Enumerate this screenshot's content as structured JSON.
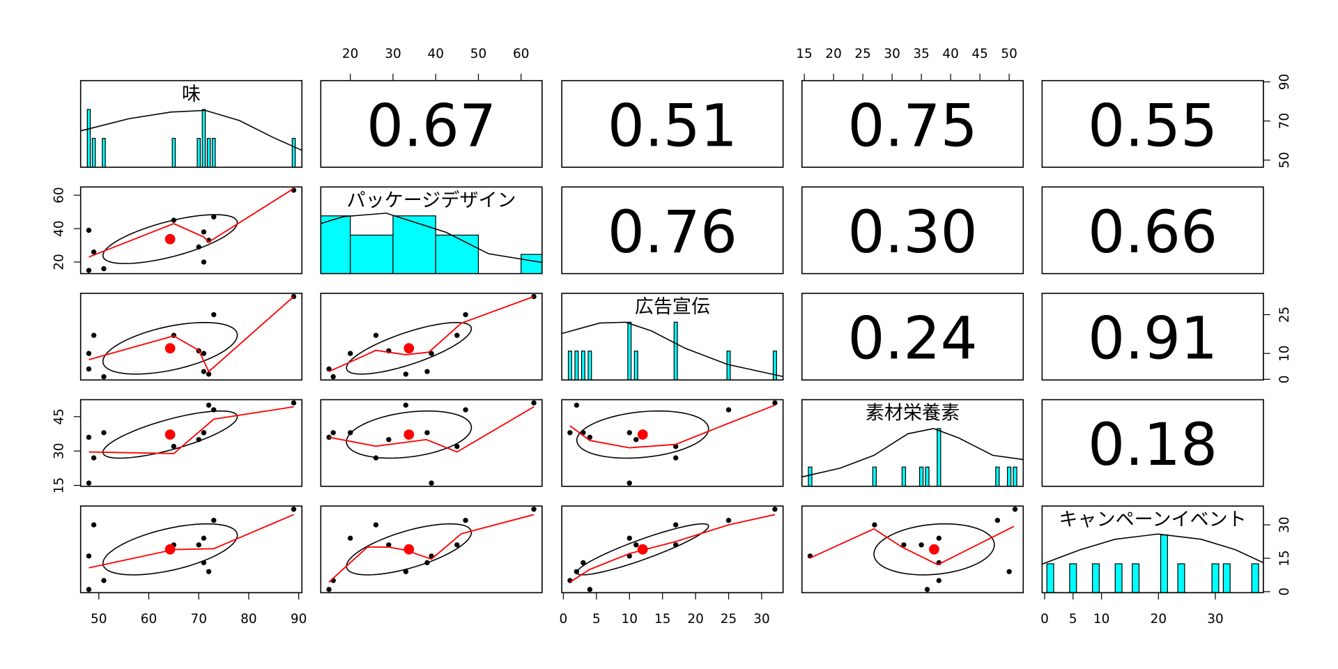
{
  "chart_data": {
    "type": "pairs",
    "variables": [
      {
        "name": "味",
        "values": [
          48,
          48,
          49,
          51,
          65,
          70,
          71,
          71,
          72,
          73,
          89
        ],
        "lim": [
          46.36,
          90.64
        ],
        "xticks": [
          50,
          60,
          70,
          80,
          90
        ],
        "yticks": [
          50,
          70,
          90
        ],
        "mean": 64.27,
        "sd": 13.45,
        "hist": {
          "bins": [
            47.7,
            48.3,
            48.7,
            49.3,
            50.7,
            51.3,
            64.7,
            65.3,
            69.7,
            70.3,
            70.7,
            71.3,
            71.7,
            72.3,
            72.7,
            73.3,
            88.7,
            89.3
          ],
          "counts": [
            2,
            0,
            1,
            0,
            1,
            0,
            1,
            0,
            1,
            0,
            2,
            0,
            1,
            0,
            1,
            0,
            1
          ]
        },
        "hist_ylim": [
          0,
          3
        ],
        "density": {
          "x": [
            46.4,
            56,
            64.4,
            71.3,
            78.1,
            84.9,
            90.6
          ],
          "y": [
            1.26,
            1.68,
            1.91,
            1.97,
            1.62,
            1.03,
            0.59
          ]
        }
      },
      {
        "name": "パッケージデザイン",
        "values": [
          39,
          15,
          26,
          16,
          45,
          29,
          20,
          38,
          33,
          47,
          63
        ],
        "lim": [
          13.08,
          64.92
        ],
        "xticks": [
          20,
          30,
          40,
          50,
          60
        ],
        "yticks": [
          20,
          40,
          60
        ],
        "mean": 33.73,
        "sd": 14.64,
        "hist": {
          "bins": [
            10,
            20,
            30,
            40,
            50,
            60,
            70
          ],
          "counts": [
            3,
            2,
            3,
            2,
            0,
            1
          ]
        },
        "hist_ylim": [
          0,
          4.5
        ],
        "density": {
          "x": [
            13.1,
            18.4,
            28.4,
            42.4,
            52.4,
            64.9
          ],
          "y": [
            2.6,
            2.96,
            3.14,
            2.15,
            1.03,
            0.58
          ]
        }
      },
      {
        "name": "広告宣伝",
        "values": [
          10,
          4,
          17,
          1,
          17,
          11,
          10,
          3,
          2,
          25,
          32
        ],
        "lim": [
          -0.24,
          33.24
        ],
        "xticks": [
          0,
          5,
          10,
          15,
          20,
          25,
          30
        ],
        "yticks": [
          0,
          10,
          25
        ],
        "mean": 12,
        "sd": 9.97,
        "hist": {
          "bins": [
            0.75,
            1.25,
            1.75,
            2.25,
            2.75,
            3.25,
            3.75,
            4.25,
            9.75,
            10.25,
            10.75,
            11.25,
            16.75,
            17.25,
            24.75,
            25.25,
            31.75,
            32.25
          ],
          "counts": [
            1,
            0,
            1,
            0,
            1,
            0,
            1,
            0,
            2,
            0,
            1,
            0,
            2,
            0,
            1,
            0,
            1
          ]
        },
        "hist_ylim": [
          0,
          3
        ],
        "density": {
          "x": [
            -0.2,
            5.5,
            9.4,
            13.3,
            18.4,
            24.8,
            33.2
          ],
          "y": [
            1.61,
            1.97,
            2.0,
            1.7,
            1.1,
            0.54,
            0.12
          ]
        }
      },
      {
        "name": "素材栄養素",
        "values": [
          16,
          36,
          27,
          38,
          32,
          35,
          38,
          38,
          50,
          48,
          51
        ],
        "lim": [
          14.6,
          52.4
        ],
        "xticks": [
          15,
          20,
          25,
          30,
          35,
          40,
          45,
          50
        ],
        "yticks": [
          15,
          30,
          45
        ],
        "mean": 37.18,
        "sd": 10.29,
        "hist": {
          "bins": [
            15.7,
            16.3,
            26.7,
            27.3,
            31.7,
            32.3,
            34.7,
            35.3,
            35.7,
            36.3,
            37.7,
            38.3,
            47.7,
            48.3,
            49.7,
            50.3,
            50.7,
            51.3
          ],
          "counts": [
            1,
            0,
            1,
            0,
            1,
            0,
            1,
            0,
            1,
            0,
            3,
            0,
            1,
            0,
            1,
            0,
            1
          ]
        },
        "hist_ylim": [
          0,
          4.5
        ],
        "density": {
          "x": [
            14.6,
            21.1,
            26.9,
            32.7,
            37.1,
            41.4,
            47.2,
            52.4
          ],
          "y": [
            0.49,
            0.94,
            1.61,
            2.73,
            3.0,
            2.51,
            1.61,
            1.39
          ]
        }
      },
      {
        "name": "キャンペーンイベント",
        "values": [
          16,
          1,
          30,
          5,
          21,
          21,
          24,
          13,
          9,
          32,
          37
        ],
        "lim": [
          -0.44,
          38.44
        ],
        "xticks": [
          0,
          5,
          10,
          20,
          30
        ],
        "yticks": [
          0,
          15,
          30
        ],
        "mean": 19,
        "sd": 11.45,
        "hist": {
          "bins": [
            0.4,
            1.6,
            4.4,
            5.6,
            8.4,
            9.6,
            12.4,
            13.6,
            15.4,
            16.6,
            20.4,
            21.6,
            23.4,
            24.6,
            29.4,
            30.6,
            31.4,
            32.6,
            36.4,
            37.6
          ],
          "counts": [
            1,
            0,
            1,
            0,
            1,
            0,
            1,
            0,
            1,
            0,
            2,
            0,
            1,
            0,
            1,
            0,
            1,
            0,
            1
          ]
        },
        "hist_ylim": [
          0,
          3
        ],
        "density": {
          "x": [
            -0.45,
            6.3,
            12.4,
            19.9,
            27.5,
            33.5,
            38.4
          ],
          "y": [
            0.99,
            1.49,
            1.85,
            2.03,
            1.85,
            1.49,
            1.04
          ]
        }
      }
    ],
    "correlations": [
      [
        0.67,
        0.51,
        0.75,
        0.55
      ],
      [
        0.76,
        {
          "value": 0.3,
          "label": "0.30"
        },
        0.66
      ],
      [
        0.24,
        0.91
      ],
      [
        0.18
      ]
    ],
    "smooths": [
      [
        {
          "x": [
            48,
            65,
            71,
            72,
            89
          ],
          "y": [
            23,
            43,
            35,
            32,
            64
          ]
        }
      ],
      [
        {
          "x": [
            48,
            65,
            70,
            72,
            89
          ],
          "y": [
            7.6,
            16.8,
            11.2,
            3,
            32
          ]
        },
        {
          "x": [
            15,
            26,
            33,
            38.4,
            46,
            63
          ],
          "y": [
            3,
            11.2,
            9.5,
            10.5,
            21.7,
            32
          ]
        }
      ],
      [
        {
          "x": [
            48,
            65,
            73,
            89
          ],
          "y": [
            29.6,
            28.9,
            43.9,
            49.3
          ]
        },
        {
          "x": [
            15,
            26,
            37.8,
            45,
            63
          ],
          "y": [
            36,
            32.1,
            35,
            29.6,
            49.3
          ]
        },
        {
          "x": [
            1,
            4,
            10,
            17,
            25,
            32
          ],
          "y": [
            41,
            34.6,
            31.4,
            32.9,
            42.1,
            50
          ]
        }
      ],
      [
        {
          "x": [
            48,
            65,
            73,
            89
          ],
          "y": [
            10.7,
            18.9,
            19.3,
            34.6
          ]
        },
        {
          "x": [
            15,
            24,
            29,
            33,
            39,
            46,
            63
          ],
          "y": [
            4.3,
            20,
            20,
            18.6,
            14.6,
            26,
            34.6
          ]
        },
        {
          "x": [
            1,
            4,
            10,
            17,
            25,
            32
          ],
          "y": [
            4.3,
            10,
            17.1,
            22.5,
            30,
            34.6
          ]
        },
        {
          "x": [
            15.9,
            26.9,
            31.7,
            37.8,
            50.8
          ],
          "y": [
            15,
            28.2,
            20,
            12.1,
            29.3
          ]
        }
      ]
    ],
    "hist_color": "#00ffff",
    "point_color": "#000000",
    "mean_color": "#ff0000",
    "smooth_color": "#ff0000",
    "ellipse_color": "#000000"
  }
}
